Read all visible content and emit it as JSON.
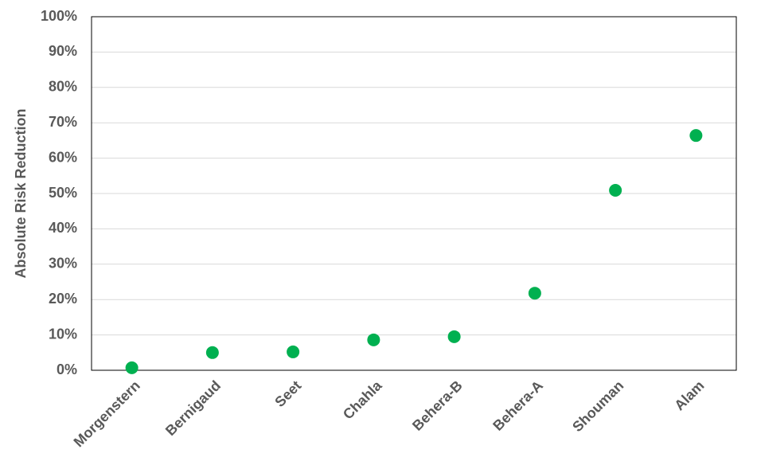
{
  "chart_data": {
    "type": "scatter",
    "y_label": "Absolute Risk Reduction",
    "categories": [
      "Morgenstern",
      "Bernigaud",
      "Seet",
      "Chahla",
      "Behera-B",
      "Behera-A",
      "Shouman",
      "Alam"
    ],
    "values": [
      0.7,
      5.0,
      5.2,
      8.6,
      9.5,
      21.8,
      50.9,
      66.4
    ],
    "color": "#00b050",
    "ylim": [
      0,
      100
    ],
    "yticks": [
      {
        "value": 0,
        "label": "0%"
      },
      {
        "value": 10,
        "label": "10%"
      },
      {
        "value": 20,
        "label": "20%"
      },
      {
        "value": 30,
        "label": "30%"
      },
      {
        "value": 40,
        "label": "40%"
      },
      {
        "value": 50,
        "label": "50%"
      },
      {
        "value": 60,
        "label": "60%"
      },
      {
        "value": 70,
        "label": "70%"
      },
      {
        "value": 80,
        "label": "80%"
      },
      {
        "value": 90,
        "label": "90%"
      },
      {
        "value": 100,
        "label": "100%"
      }
    ],
    "grid": true
  }
}
